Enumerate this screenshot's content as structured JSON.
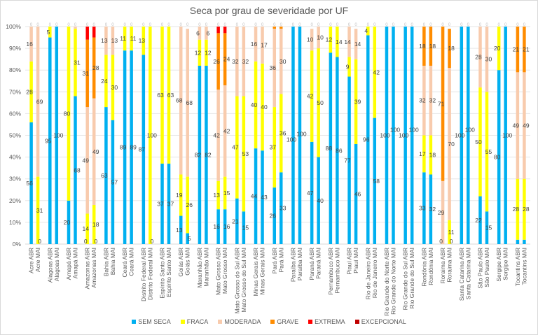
{
  "chart_data": {
    "type": "bar",
    "stacked": true,
    "title": "Seca por grau de severidade por UF",
    "ylim": [
      0,
      100
    ],
    "yticks": [
      "0%",
      "10%",
      "20%",
      "30%",
      "40%",
      "50%",
      "60%",
      "70%",
      "80%",
      "90%",
      "100%"
    ],
    "grid": true,
    "legend_position": "bottom",
    "series_names": [
      "SEM SECA",
      "FRACA",
      "MODERADA",
      "GRAVE",
      "EXTREMA",
      "EXCEPCIONAL"
    ],
    "colors": [
      "#00B0F0",
      "#FFFF00",
      "#F8CBAD",
      "#FF8C00",
      "#FF0000",
      "#C00000"
    ],
    "groups": [
      {
        "state": "Acre",
        "bars": [
          {
            "label": "Acre ABR",
            "values": [
              56,
              28,
              16,
              0,
              0,
              0
            ]
          },
          {
            "label": "Acre MAI",
            "values": [
              0,
              31,
              69,
              0,
              0,
              0
            ]
          }
        ]
      },
      {
        "state": "Alagoas",
        "bars": [
          {
            "label": "Alagoas ABR",
            "values": [
              95,
              5,
              0,
              0,
              0,
              0
            ]
          },
          {
            "label": "Alagoas MAI",
            "values": [
              100,
              0,
              0,
              0,
              0,
              0
            ]
          }
        ]
      },
      {
        "state": "Amapá",
        "bars": [
          {
            "label": "Amapá ABR",
            "values": [
              20,
              80,
              0,
              0,
              0,
              0
            ]
          },
          {
            "label": "Amapá MAI",
            "values": [
              68,
              31,
              1,
              0,
              0,
              0
            ]
          }
        ]
      },
      {
        "state": "Amazonas",
        "bars": [
          {
            "label": "Amazonas ABR",
            "values": [
              0,
              14,
              49,
              31,
              6,
              0
            ]
          },
          {
            "label": "Amazonas MAI",
            "values": [
              0,
              18,
              49,
              28,
              5,
              0
            ]
          }
        ]
      },
      {
        "state": "Bahia",
        "bars": [
          {
            "label": "Bahia ABR",
            "values": [
              63,
              24,
              13,
              0,
              0,
              0
            ]
          },
          {
            "label": "Bahia MAI",
            "values": [
              57,
              30,
              13,
              0,
              0,
              0
            ]
          }
        ]
      },
      {
        "state": "Ceará",
        "bars": [
          {
            "label": "Ceará ABR",
            "values": [
              89,
              11,
              0,
              0,
              0,
              0
            ]
          },
          {
            "label": "Ceará MAI",
            "values": [
              89,
              11,
              0,
              0,
              0,
              0
            ]
          }
        ]
      },
      {
        "state": "Distrito Federal",
        "bars": [
          {
            "label": "Distrito Federal ABR",
            "values": [
              87,
              13,
              0,
              0,
              0,
              0
            ]
          },
          {
            "label": "Distrito Federal MAI",
            "values": [
              0,
              100,
              0,
              0,
              0,
              0
            ]
          }
        ]
      },
      {
        "state": "Espírito Santo",
        "bars": [
          {
            "label": "Espírito Santo ABR",
            "values": [
              37,
              63,
              0,
              0,
              0,
              0
            ]
          },
          {
            "label": "Espírito Santo MAI",
            "values": [
              37,
              63,
              0,
              0,
              0,
              0
            ]
          }
        ]
      },
      {
        "state": "Goiás",
        "bars": [
          {
            "label": "Goiás ABR",
            "values": [
              13,
              19,
              68,
              0,
              0,
              0
            ]
          },
          {
            "label": "Goiás MAI",
            "values": [
              5,
              26,
              68,
              0,
              0,
              0
            ]
          }
        ]
      },
      {
        "state": "Maranhão",
        "bars": [
          {
            "label": "Maranhão ABR",
            "values": [
              82,
              12,
              6,
              0,
              0,
              0
            ]
          },
          {
            "label": "Maranhão MAI",
            "values": [
              82,
              12,
              6,
              0,
              0,
              0
            ]
          }
        ]
      },
      {
        "state": "Mato Grosso",
        "bars": [
          {
            "label": "Mato Grosso ABR",
            "values": [
              16,
              13,
              42,
              26,
              3,
              0
            ]
          },
          {
            "label": "Mato Grosso MAI",
            "values": [
              16,
              15,
              42,
              24,
              3,
              0
            ]
          }
        ]
      },
      {
        "state": "Mato Grosso do Sul",
        "bars": [
          {
            "label": "Mato Grosso do Sul ABR",
            "values": [
              21,
              47,
              32,
              0,
              0,
              0
            ]
          },
          {
            "label": "Mato Grosso do Sul MAI",
            "values": [
              15,
              53,
              32,
              0,
              0,
              0
            ]
          }
        ]
      },
      {
        "state": "Minas Gerais",
        "bars": [
          {
            "label": "Minas Gerais ABR",
            "values": [
              44,
              40,
              16,
              0,
              0,
              0
            ]
          },
          {
            "label": "Minas Gerais MAI",
            "values": [
              43,
              40,
              17,
              0,
              0,
              0
            ]
          }
        ]
      },
      {
        "state": "Pará",
        "bars": [
          {
            "label": "Pará ABR",
            "values": [
              26,
              37,
              36,
              1,
              0,
              0
            ]
          },
          {
            "label": "Pará MAI",
            "values": [
              33,
              36,
              30,
              1,
              0,
              0
            ]
          }
        ]
      },
      {
        "state": "Paraíba",
        "bars": [
          {
            "label": "Paraíba ABR",
            "values": [
              100,
              0,
              0,
              0,
              0,
              0
            ]
          },
          {
            "label": "Paraíba MAI",
            "values": [
              100,
              0,
              0,
              0,
              0,
              0
            ]
          }
        ]
      },
      {
        "state": "Paraná",
        "bars": [
          {
            "label": "Paraná ABR",
            "values": [
              47,
              42,
              10,
              0,
              0,
              0
            ]
          },
          {
            "label": "Paraná MAI",
            "values": [
              40,
              50,
              10,
              0,
              0,
              0
            ]
          }
        ]
      },
      {
        "state": "Pernambuco",
        "bars": [
          {
            "label": "Pernambuco ABR",
            "values": [
              88,
              12,
              0,
              0,
              0,
              0
            ]
          },
          {
            "label": "Pernambuco MAI",
            "values": [
              86,
              14,
              0,
              0,
              0,
              0
            ]
          }
        ]
      },
      {
        "state": "Piauí",
        "bars": [
          {
            "label": "Piauí ABR",
            "values": [
              77,
              9,
              14,
              0,
              0,
              0
            ]
          },
          {
            "label": "Piauí MAI",
            "values": [
              46,
              39,
              14,
              0,
              0,
              0
            ]
          }
        ]
      },
      {
        "state": "Rio de Janeiro",
        "bars": [
          {
            "label": "Rio de Janeiro ABR",
            "values": [
              96,
              4,
              0,
              0,
              0,
              0
            ]
          },
          {
            "label": "Rio de Janeiro MAI",
            "values": [
              58,
              42,
              0,
              0,
              0,
              0
            ]
          }
        ]
      },
      {
        "state": "Rio Grande do Norte",
        "bars": [
          {
            "label": "Rio Grande do Norte ABR",
            "values": [
              100,
              0,
              0,
              0,
              0,
              0
            ]
          },
          {
            "label": "Rio Grande do Norte MAI",
            "values": [
              100,
              0,
              0,
              0,
              0,
              0
            ]
          }
        ]
      },
      {
        "state": "Rio Grande do Sul",
        "bars": [
          {
            "label": "Rio Grande do Sul ABR",
            "values": [
              100,
              0,
              0,
              0,
              0,
              0
            ]
          },
          {
            "label": "Rio Grande do Sul MAI",
            "values": [
              100,
              0,
              0,
              0,
              0,
              0
            ]
          }
        ]
      },
      {
        "state": "Rondônia",
        "bars": [
          {
            "label": "Rondônia ABR",
            "values": [
              33,
              17,
              32,
              18,
              0,
              0
            ]
          },
          {
            "label": "Rondônia MAI",
            "values": [
              32,
              18,
              32,
              18,
              0,
              0
            ]
          }
        ]
      },
      {
        "state": "Roraima",
        "bars": [
          {
            "label": "Roraima ABR",
            "values": [
              0,
              0,
              29,
              71,
              0,
              0
            ]
          },
          {
            "label": "Roraima MAI",
            "values": [
              0,
              11,
              70,
              18,
              0,
              0
            ]
          }
        ]
      },
      {
        "state": "Santa Catarina",
        "bars": [
          {
            "label": "Santa Catarina ABR",
            "values": [
              100,
              0,
              0,
              0,
              0,
              0
            ]
          },
          {
            "label": "Santa Catarina MAI",
            "values": [
              100,
              0,
              0,
              0,
              0,
              0
            ]
          }
        ]
      },
      {
        "state": "São Paulo",
        "bars": [
          {
            "label": "São Paulo ABR",
            "values": [
              22,
              50,
              28,
              0,
              0,
              0
            ]
          },
          {
            "label": "São Paulo MAI",
            "values": [
              15,
              55,
              30,
              0,
              0,
              0
            ]
          }
        ]
      },
      {
        "state": "Sergipe",
        "bars": [
          {
            "label": "Sergipe ABR",
            "values": [
              80,
              20,
              0,
              0,
              0,
              0
            ]
          },
          {
            "label": "Sergipe MAI",
            "values": [
              100,
              0,
              0,
              0,
              0,
              0
            ]
          }
        ]
      },
      {
        "state": "Tocantins",
        "bars": [
          {
            "label": "Tocantins ABR",
            "values": [
              2,
              28,
              49,
              21,
              0,
              0
            ]
          },
          {
            "label": "Tocantins MAI",
            "values": [
              2,
              28,
              49,
              21,
              0,
              0
            ]
          }
        ]
      }
    ]
  }
}
